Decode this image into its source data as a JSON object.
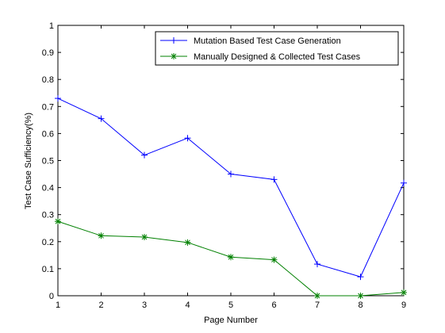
{
  "chart_data": {
    "type": "line",
    "x": [
      1,
      2,
      3,
      4,
      5,
      6,
      7,
      8,
      9
    ],
    "xlabel": "Page Number",
    "ylabel": "Test Case Sufficiency(%)",
    "xlim": [
      1,
      9
    ],
    "ylim": [
      0,
      1
    ],
    "xticks": [
      "1",
      "2",
      "3",
      "4",
      "5",
      "6",
      "7",
      "8",
      "9"
    ],
    "yticks": [
      "0",
      "0.1",
      "0.2",
      "0.3",
      "0.4",
      "0.5",
      "0.6",
      "0.7",
      "0.8",
      "0.9",
      "1"
    ],
    "grid": false,
    "legend_position": "top-right",
    "series": [
      {
        "name": "Mutation Based Test Case Generation",
        "color": "#0000ff",
        "marker": "plus",
        "values": [
          0.73,
          0.655,
          0.52,
          0.583,
          0.45,
          0.43,
          0.117,
          0.07,
          0.417
        ]
      },
      {
        "name": "Manually Designed & Collected Test Cases",
        "color": "#008000",
        "marker": "star",
        "values": [
          0.275,
          0.222,
          0.217,
          0.197,
          0.143,
          0.133,
          0.0,
          0.0,
          0.012
        ]
      }
    ]
  }
}
